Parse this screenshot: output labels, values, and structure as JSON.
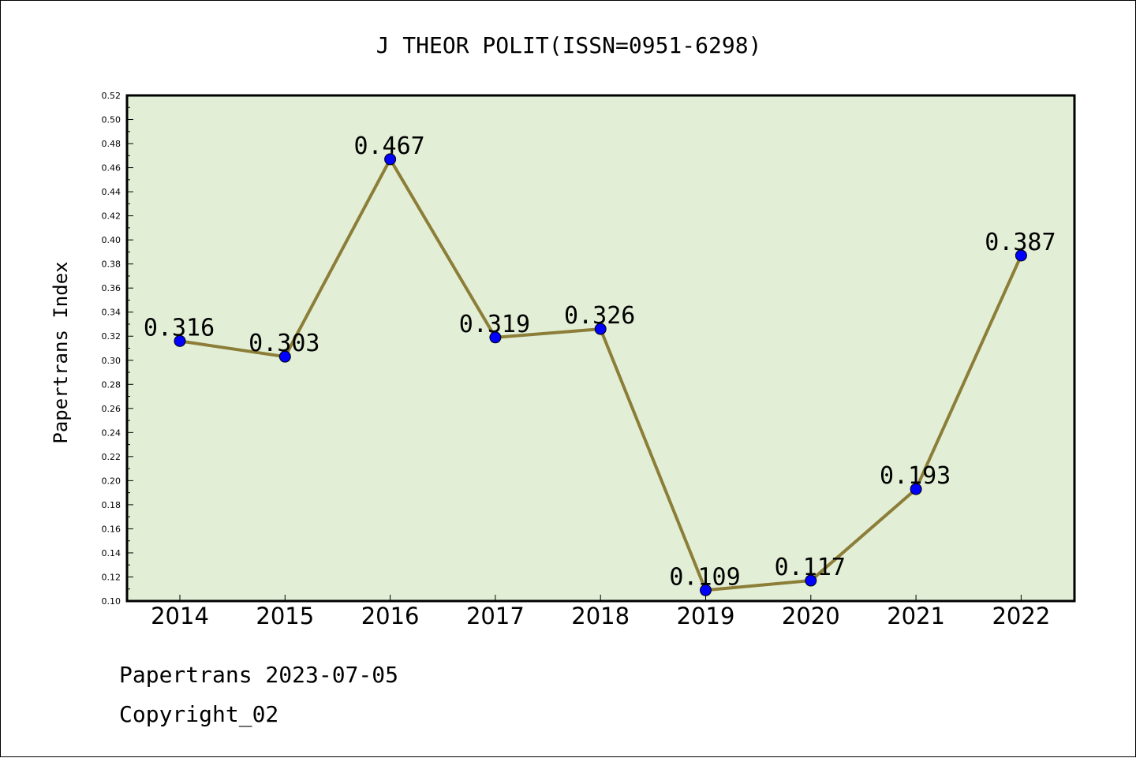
{
  "chart_data": {
    "type": "line",
    "title": "J THEOR POLIT(ISSN=0951-6298)",
    "xlabel": "",
    "ylabel": "Papertrans Index",
    "categories": [
      "2014",
      "2015",
      "2016",
      "2017",
      "2018",
      "2019",
      "2020",
      "2021",
      "2022"
    ],
    "values": [
      0.316,
      0.303,
      0.467,
      0.319,
      0.326,
      0.109,
      0.117,
      0.193,
      0.387
    ],
    "data_labels": [
      "0.316",
      "0.303",
      "0.467",
      "0.319",
      "0.326",
      "0.109",
      "0.117",
      "0.193",
      "0.387"
    ],
    "ylim": [
      0.1,
      0.52
    ],
    "yticks": [
      "0.10",
      "0.12",
      "0.14",
      "0.16",
      "0.18",
      "0.20",
      "0.22",
      "0.24",
      "0.26",
      "0.28",
      "0.30",
      "0.32",
      "0.34",
      "0.36",
      "0.38",
      "0.40",
      "0.42",
      "0.44",
      "0.46",
      "0.48",
      "0.50",
      "0.52"
    ],
    "grid": false,
    "colors": {
      "plot_background": "#e2efd6",
      "line": "#8c7e38",
      "marker": "#0000ff",
      "frame": "#000000"
    }
  },
  "footer": {
    "line1": "Papertrans 2023-07-05",
    "line2": "Copyright_02"
  }
}
